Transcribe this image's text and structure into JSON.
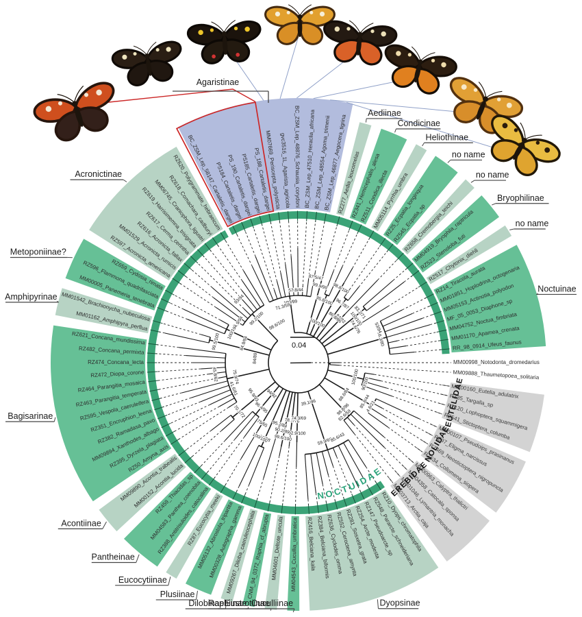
{
  "figure": {
    "type": "circular_phylogenetic_tree",
    "scale_bar_label": "0.04"
  },
  "colors": {
    "clade_dark_green": "#66c096",
    "clade_pale_green": "#b7d3c4",
    "agaristinae_blue": "#b2bcdd",
    "outgroup_gray": "#d3d3d3",
    "inner_ring_green": "#3ba377",
    "highlight_red": "#cc2727",
    "connector_blue": "#8fa0c8",
    "noctuidae_label_teal": "#2ba47b",
    "tree_line": "#1a1a1a"
  },
  "ring_labels": {
    "inner_arc": "NOCTUIDAE",
    "families": [
      "EUTELIDAE",
      "NOLIDAE",
      "EREBIDAE"
    ]
  },
  "groups": [
    {
      "label": "Agaristinae",
      "family": null,
      "color": "blue",
      "tips": [
        "BC_ZSM_Lep_58147_Cartaletis_dargei",
        "PS184_Cartaletis_dargei",
        "PS_190_Cartaletis_dargei",
        "PS185_Cartaletis_dargei",
        "PS_188_Cartaletis_dargei",
        "MM07669_Periscepta_polysticta",
        "gvc3516_1L_Agarista_agricola",
        "BC_ZSM_Lep_48876_Schausia_corydoni",
        "BC_ZSM_Lep_47510_Heraclia_africana",
        "BC_ZSM_Lep_48554_Agoma_trimenii",
        "BC_ZSM_Lep_46877_Aegocera_tigrina"
      ]
    },
    {
      "label": "Aediinae",
      "family": null,
      "color": "pale",
      "tips": [
        "RZ277_Aedia_leucomelas"
      ]
    },
    {
      "label": "Condicinae",
      "family": null,
      "color": "dark",
      "tips": [
        "RZ341_Hemicephalis_alesa",
        "RZ511_Condica_illecta"
      ]
    },
    {
      "label": "Heliothinae",
      "family": null,
      "color": "pale",
      "tips": [
        "MM05114_Pyrrhia_umbra"
      ]
    },
    {
      "label": "no name",
      "family": null,
      "color": "dark",
      "tips": [
        "RZ25_Ecpatia_longinqua",
        "RZ545_Ecpatia_sp"
      ]
    },
    {
      "label": "no name",
      "family": null,
      "color": "pale",
      "tips": [
        "RZ658_Cremobergia_teichi"
      ]
    },
    {
      "label": "Bryophilinae",
      "family": null,
      "color": "dark",
      "tips": [
        "MM04919_Bryophila_raptricula",
        "RZ523_Stenoloba_futi"
      ]
    },
    {
      "label": "no name",
      "family": null,
      "color": "pale",
      "tips": [
        "RZ517_Chytonix_diehli"
      ]
    },
    {
      "label": "Noctuinae",
      "family": null,
      "color": "dark",
      "tips": [
        "RZ14_Tiracola_aurata",
        "MM01851_Hoplodrina_octogenaria",
        "MM05153_Actinotia_polyodon",
        "MF_05_0053_Diaphone_sp",
        "MM04752_Noctua_fimbriata",
        "MM01170_Apamea_crenata",
        "RR_98_0914_Ufeus_faunus"
      ]
    },
    {
      "label": null,
      "family": null,
      "color": "white",
      "tips": [
        "MM00998_Notodonta_dromedarius",
        "MM09888_Thaumetopoea_solitaria"
      ]
    },
    {
      "label": null,
      "family": "EUTELIDAE",
      "color": "gray",
      "tips": [
        "MM00160_Eutelia_adulatrix",
        "RZ35_Targalla_sp",
        "RZ120_Lophoptera_squammigera",
        "RZ541_Stictoptera_columba"
      ]
    },
    {
      "label": null,
      "family": "NOLIDAE",
      "color": "gray",
      "tips": [
        "MM00107_Pseudoips_prasinanus",
        "RZ97_Eligma_narcissus",
        "RZ469_Neostictoptera_nigropuncta",
        "RZ634_Collomena_siopera"
      ]
    },
    {
      "label": null,
      "family": "EREBIDAE",
      "color": "gray",
      "tips": [
        "MM00963_Calyptra_thalictri",
        "MM04358_Catocala_sponsa",
        "MM01046_Lymantria_monacha",
        "MM03713_Arctia_caja"
      ]
    },
    {
      "label": "Dyopsinae",
      "family": null,
      "color": "pale",
      "tips": [
        "RZ10_Dyops_chromatophila",
        "RZ548_Pararcte_schneideriana",
        "RZ147_Pseudoarcte_sp",
        "RZ254_Arcte_modesta",
        "RZ281_Sosxetra_grata",
        "RZ552_Ceroctena_amynta",
        "RZ636_Cyclodes_omma",
        "RZ384_Belciana_biformis",
        "RZ416_Belciana_kala"
      ]
    },
    {
      "label": "Cuculliinae",
      "family": null,
      "color": "dark",
      "tips": [
        "MM04543_Cucullia_umbratica"
      ]
    },
    {
      "label": "Eustrotiinae",
      "family": null,
      "color": "pale",
      "tips": [
        "MM04601_Deltote_uncula"
      ]
    },
    {
      "label": "Raphiinae",
      "family": null,
      "color": "dark",
      "tips": [
        "CNM_94_0372_Raphia_cf_abrupta"
      ]
    },
    {
      "label": "Dilobinae",
      "family": null,
      "color": "pale",
      "tips": [
        "MM09267_Diloba_caeruleocephala"
      ]
    },
    {
      "label": "Plusiinae",
      "family": null,
      "color": "dark",
      "tips": [
        "MM00328_Autographa_gamma",
        "MM05132_Abrostola_tripartita"
      ]
    },
    {
      "label": "Eucocytiinae",
      "family": null,
      "color": "pale",
      "tips": [
        "RZ87_Eucocytia_meeki"
      ]
    },
    {
      "label": "Pantheinae",
      "family": null,
      "color": "dark",
      "tips": [
        "RZ388_Antitrisuloides_catocalina",
        "MM04583_Panthea_coenobita",
        "RZ459_Thiacidas_sp"
      ]
    },
    {
      "label": "Acontiinae",
      "family": null,
      "color": "pale",
      "tips": [
        "MM00152_Acontia_lucida",
        "MM09890_Acontia_trabealis"
      ]
    },
    {
      "label": "Bagisarinae",
      "family": null,
      "color": "dark",
      "tips": [
        "RZ50_Amyna_axis",
        "RZ395_Dyrzela_plagiata",
        "MM09894_Xanthodes_albago",
        "RZ382_Ramadasa_pavo",
        "RZ351_Encruphion_leena",
        "RZ595_Vespola_caeruleifera",
        "RZ463_Parangitia_temperata",
        "RZ464_Parangitia_mosaica",
        "RZ472_Diopa_corone",
        "RZ474_Concana_lecta",
        "RZ482_Concana_permixta",
        "RZ621_Concana_mundissima"
      ]
    },
    {
      "label": "Amphipyrinae",
      "family": null,
      "color": "pale",
      "tips": [
        "MM01162_Amphipyra_perflua",
        "MM01542_Brachionycha_nubeculosa"
      ]
    },
    {
      "label": "Metoponiinae?",
      "family": null,
      "color": "dark",
      "tips": [
        "MM00005_Panemeria_tenebrata",
        "RZ596_Flammona_quadrifasciata",
        "RZ659_Cydosia_rimata"
      ]
    },
    {
      "label": "Acronictinae",
      "family": null,
      "color": "pale",
      "tips": [
        "RZ597_Acronicta_americana",
        "MM01529_Acronicta_rumicis",
        "RZ616_Acronicta_fallax",
        "RZ617_Cerma_cerintha",
        "RZ619_Harrisimemna_trisignata",
        "MM06745_Craniophora_ligustri",
        "RZ618_Comachara_cadburyi",
        "RZ620_Polygrammate_hebraeicum"
      ]
    }
  ],
  "highlighted_clade": {
    "group": "Agaristinae",
    "tips": [
      "BC_ZSM_Lep_58147_Cartaletis_dargei",
      "PS184_Cartaletis_dargei",
      "PS_190_Cartaletis_dargei",
      "PS185_Cartaletis_dargei",
      "PS_188_Cartaletis_dargei"
    ],
    "outline_color": "#cc2727"
  },
  "support_values": [
    "100/99",
    "99.9/99",
    "95.8/100",
    "98.8/100",
    "96.7/87",
    "84/82",
    "83.2/71",
    "74.6/76",
    "66.3/80",
    "100/100",
    "85.8/44",
    "98.8/96",
    "59.9/69",
    "92.9/100",
    "78.7/76",
    "99.6/100",
    "95.2/84",
    "99/98",
    "75/65",
    "96.4/95",
    "70.1/72",
    "75.9/74",
    "99.5/100",
    "100/100",
    "99.2/100",
    "88.6/84",
    "82.6/59",
    "85.6/43",
    "39.1/46",
    "74.3/69",
    "90.2/89",
    "100/100",
    "94/92",
    "95.9/93",
    "41.6/61",
    "45.8/62",
    "84/89",
    "84.9/94",
    "94.9/94",
    "93/94",
    "98.6/100",
    "71.3/59",
    "57.8/44",
    "87.5/47",
    "100/100",
    "86.8/86",
    "100/100",
    "53/94",
    "90/100",
    "4.6/21"
  ],
  "butterflies": [
    {
      "name": "butterfly-photo-1",
      "fw": "#cf4f1e",
      "hw": "#33201a",
      "edge": "#26150d",
      "spots": "#f3e8d5"
    },
    {
      "name": "butterfly-photo-2",
      "fw": "#2a1e14",
      "hw": "#201710",
      "edge": "#0f0a06",
      "spots": "#eee4bd"
    },
    {
      "name": "butterfly-photo-3",
      "fw": "#1b130c",
      "hw": "#231a10",
      "edge": "#0d0905",
      "spots": "#eec62a",
      "spots2": "#d23333"
    },
    {
      "name": "butterfly-photo-4",
      "fw": "#e2a02e",
      "hw": "#d98f26",
      "edge": "#442a10",
      "spots": "#f6efd9"
    },
    {
      "name": "butterfly-photo-5",
      "fw": "#241a12",
      "hw": "#d96128",
      "edge": "#140d08",
      "spots": "#ece0b8"
    },
    {
      "name": "butterfly-photo-6",
      "fw": "#2c1d10",
      "hw": "#e0801f",
      "edge": "#160e07",
      "spots": "#efdcab"
    },
    {
      "name": "butterfly-photo-7",
      "fw": "#e1a035",
      "hw": "#d88e2a",
      "edge": "#53310f",
      "spots": "#f7e9c9"
    },
    {
      "name": "butterfly-photo-8",
      "fw": "#e9bc41",
      "hw": "#dfa42f",
      "edge": "#221808",
      "spots": "#2a1c0c"
    }
  ]
}
